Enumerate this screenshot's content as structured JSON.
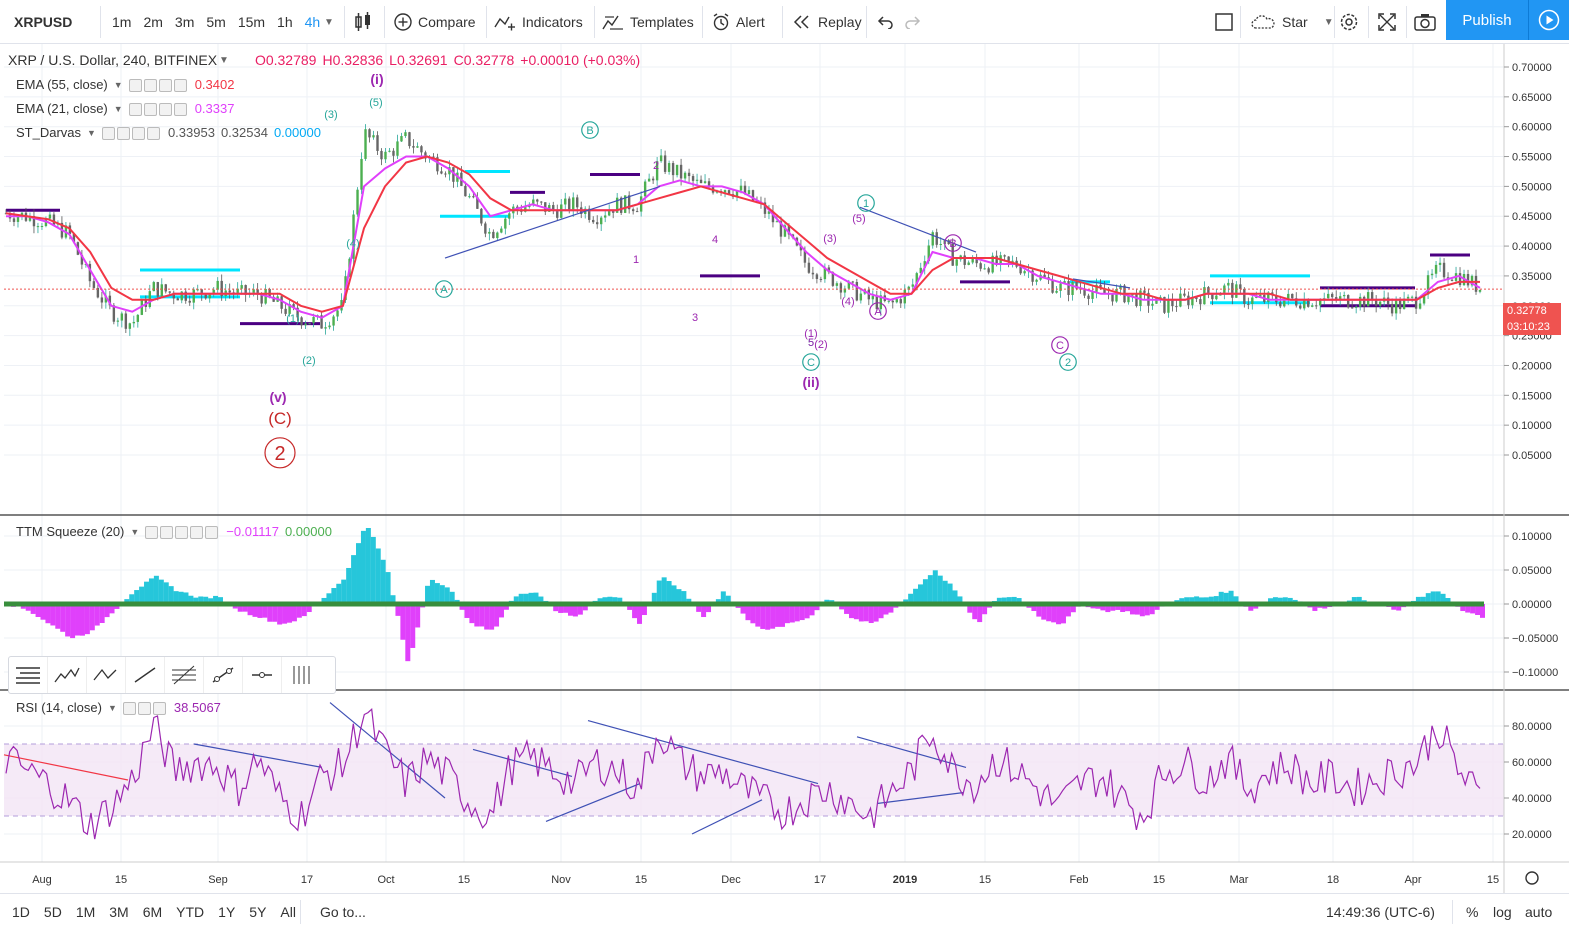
{
  "toolbar": {
    "symbol": "XRPUSD",
    "intervals": [
      "1m",
      "2m",
      "3m",
      "5m",
      "15m",
      "1h",
      "4h"
    ],
    "active_interval": "4h",
    "compare": "Compare",
    "indicators": "Indicators",
    "templates": "Templates",
    "alert": "Alert",
    "replay": "Replay",
    "star": "Star",
    "publish": "Publish"
  },
  "legend": {
    "title": "XRP / U.S. Dollar, 240, BITFINEX",
    "open": "O0.32789",
    "high": "H0.32836",
    "low": "L0.32691",
    "close": "C0.32778",
    "change": "+0.00010 (+0.03%)",
    "ema55": {
      "label": "EMA (55, close)",
      "value": "0.3402"
    },
    "ema21": {
      "label": "EMA (21, close)",
      "value": "0.3337"
    },
    "darvas": {
      "label": "ST_Darvas",
      "v1": "0.33953",
      "v2": "0.32534",
      "v3": "0.00000"
    },
    "ttm": {
      "label": "TTM Squeeze (20)",
      "v1": "−0.01117",
      "v2": "0.00000"
    },
    "rsi": {
      "label": "RSI (14, close)",
      "value": "38.5067"
    }
  },
  "price_badges": {
    "price": "0.32778",
    "countdown": "03:10:23"
  },
  "bottom": {
    "ranges": [
      "1D",
      "5D",
      "1M",
      "3M",
      "6M",
      "YTD",
      "1Y",
      "5Y",
      "All"
    ],
    "goto": "Go to...",
    "clock": "14:49:36 (UTC-6)",
    "percent": "%",
    "log": "log",
    "auto": "auto"
  },
  "wave_labels": [
    {
      "t": "(i)",
      "color": "#9c27b0"
    },
    {
      "t": "(ii)",
      "color": "#9c27b0"
    },
    {
      "t": "(v)",
      "color": "#9c27b0"
    },
    {
      "t": "(C)",
      "color": "#c62828"
    },
    {
      "t": "2",
      "color": "#c62828"
    },
    {
      "t": "(5)",
      "color": "#26a69a"
    },
    {
      "t": "(3)",
      "color": "#26a69a"
    },
    {
      "t": "(4)",
      "color": "#26a69a"
    },
    {
      "t": "(1)",
      "color": "#26a69a"
    },
    {
      "t": "(2)",
      "color": "#26a69a"
    },
    {
      "t": "5",
      "color": "#26a69a"
    },
    {
      "t": "A",
      "color": "#26a69a"
    },
    {
      "t": "B",
      "color": "#26a69a"
    },
    {
      "t": "C",
      "color": "#26a69a"
    },
    {
      "t": "1",
      "color": "#26a69a"
    },
    {
      "t": "2",
      "color": "#26a69a"
    },
    {
      "t": "2",
      "color": "#9c27b0"
    },
    {
      "t": "1",
      "color": "#9c27b0"
    },
    {
      "t": "3",
      "color": "#9c27b0"
    },
    {
      "t": "4",
      "color": "#9c27b0"
    },
    {
      "t": "5",
      "color": "#9c27b0"
    },
    {
      "t": "(1)",
      "color": "#9c27b0"
    },
    {
      "t": "(2)",
      "color": "#9c27b0"
    },
    {
      "t": "(3)",
      "color": "#9c27b0"
    },
    {
      "t": "(4)",
      "color": "#9c27b0"
    },
    {
      "t": "(5)",
      "color": "#9c27b0"
    },
    {
      "t": "A",
      "color": "#9c27b0"
    },
    {
      "t": "B",
      "color": "#9c27b0"
    },
    {
      "t": "C",
      "color": "#9c27b0"
    }
  ],
  "chart_data": {
    "type": "line",
    "title": "XRP / U.S. Dollar, 240, BITFINEX",
    "price_ticks": [
      "0.70000",
      "0.65000",
      "0.60000",
      "0.55000",
      "0.50000",
      "0.45000",
      "0.40000",
      "0.35000",
      "0.30000",
      "0.25000",
      "0.20000",
      "0.15000",
      "0.10000",
      "0.05000"
    ],
    "ttm_ticks": [
      "0.10000",
      "0.05000",
      "0.00000",
      "−0.05000",
      "−0.10000"
    ],
    "rsi_ticks": [
      "80.0000",
      "60.0000",
      "40.0000",
      "20.0000"
    ],
    "x_ticks": [
      "Aug",
      "15",
      "Sep",
      "17",
      "Oct",
      "15",
      "Nov",
      "15",
      "Dec",
      "17",
      "2019",
      "15",
      "Feb",
      "15",
      "Mar",
      "18",
      "Apr",
      "15"
    ],
    "ylim": [
      0.02,
      0.72
    ],
    "ema21_color": "#e040fb",
    "ema55_color": "#f23645",
    "rsi_color": "#9c27b0",
    "price_close": [
      0.455,
      0.45,
      0.44,
      0.42,
      0.34,
      0.29,
      0.27,
      0.33,
      0.32,
      0.32,
      0.33,
      0.32,
      0.32,
      0.3,
      0.28,
      0.27,
      0.3,
      0.59,
      0.55,
      0.58,
      0.55,
      0.53,
      0.48,
      0.42,
      0.46,
      0.47,
      0.46,
      0.47,
      0.45,
      0.47,
      0.47,
      0.54,
      0.52,
      0.5,
      0.5,
      0.49,
      0.46,
      0.42,
      0.37,
      0.35,
      0.33,
      0.31,
      0.3,
      0.33,
      0.42,
      0.38,
      0.37,
      0.37,
      0.37,
      0.35,
      0.33,
      0.33,
      0.32,
      0.32,
      0.31,
      0.3,
      0.31,
      0.32,
      0.33,
      0.31,
      0.31,
      0.31,
      0.31,
      0.31,
      0.31,
      0.31,
      0.3,
      0.31,
      0.36,
      0.35,
      0.33
    ],
    "ema21": [
      0.45,
      0.45,
      0.44,
      0.42,
      0.36,
      0.3,
      0.29,
      0.31,
      0.32,
      0.32,
      0.32,
      0.32,
      0.32,
      0.31,
      0.29,
      0.28,
      0.3,
      0.5,
      0.53,
      0.55,
      0.55,
      0.53,
      0.5,
      0.45,
      0.46,
      0.47,
      0.46,
      0.46,
      0.46,
      0.46,
      0.47,
      0.5,
      0.51,
      0.5,
      0.5,
      0.49,
      0.47,
      0.43,
      0.39,
      0.36,
      0.34,
      0.32,
      0.31,
      0.32,
      0.39,
      0.38,
      0.38,
      0.37,
      0.37,
      0.35,
      0.34,
      0.33,
      0.32,
      0.32,
      0.31,
      0.31,
      0.31,
      0.32,
      0.32,
      0.32,
      0.31,
      0.31,
      0.31,
      0.31,
      0.31,
      0.31,
      0.31,
      0.31,
      0.34,
      0.35,
      0.33
    ],
    "ema55": [
      0.455,
      0.45,
      0.445,
      0.43,
      0.39,
      0.33,
      0.31,
      0.31,
      0.32,
      0.32,
      0.32,
      0.32,
      0.32,
      0.32,
      0.3,
      0.29,
      0.3,
      0.43,
      0.5,
      0.54,
      0.55,
      0.54,
      0.52,
      0.48,
      0.46,
      0.46,
      0.46,
      0.46,
      0.46,
      0.46,
      0.47,
      0.48,
      0.49,
      0.5,
      0.49,
      0.48,
      0.47,
      0.44,
      0.41,
      0.38,
      0.36,
      0.34,
      0.32,
      0.32,
      0.36,
      0.38,
      0.38,
      0.38,
      0.37,
      0.36,
      0.35,
      0.34,
      0.33,
      0.32,
      0.32,
      0.31,
      0.31,
      0.32,
      0.32,
      0.32,
      0.32,
      0.31,
      0.31,
      0.31,
      0.31,
      0.31,
      0.31,
      0.31,
      0.33,
      0.34,
      0.34
    ],
    "ttm": [
      0.0,
      -0.01,
      -0.03,
      -0.05,
      -0.04,
      -0.01,
      0.02,
      0.04,
      0.02,
      0.01,
      0.01,
      -0.01,
      -0.02,
      -0.03,
      -0.02,
      0.01,
      0.04,
      0.12,
      0.05,
      -0.09,
      0.04,
      0.02,
      -0.03,
      -0.04,
      0.01,
      0.02,
      -0.01,
      -0.02,
      0.01,
      0.01,
      -0.03,
      0.04,
      0.02,
      -0.02,
      0.02,
      -0.02,
      -0.04,
      -0.03,
      -0.02,
      0.01,
      -0.02,
      -0.03,
      -0.01,
      0.02,
      0.05,
      0.02,
      -0.03,
      0.01,
      0.01,
      -0.02,
      -0.03,
      0.0,
      -0.01,
      -0.01,
      -0.02,
      0.0,
      0.01,
      0.01,
      0.02,
      -0.01,
      0.01,
      0.01,
      -0.01,
      0.0,
      0.01,
      0.0,
      -0.01,
      0.01,
      0.02,
      -0.01,
      -0.02
    ],
    "rsi": [
      62,
      55,
      48,
      38,
      25,
      35,
      50,
      80,
      55,
      60,
      58,
      45,
      62,
      40,
      30,
      52,
      58,
      88,
      65,
      48,
      62,
      52,
      38,
      30,
      58,
      62,
      55,
      48,
      60,
      55,
      45,
      78,
      60,
      52,
      55,
      45,
      38,
      32,
      40,
      45,
      38,
      30,
      42,
      55,
      78,
      55,
      48,
      62,
      55,
      45,
      35,
      48,
      52,
      40,
      30,
      55,
      60,
      50,
      62,
      45,
      55,
      58,
      48,
      52,
      45,
      50,
      55,
      60,
      80,
      55,
      40
    ]
  }
}
